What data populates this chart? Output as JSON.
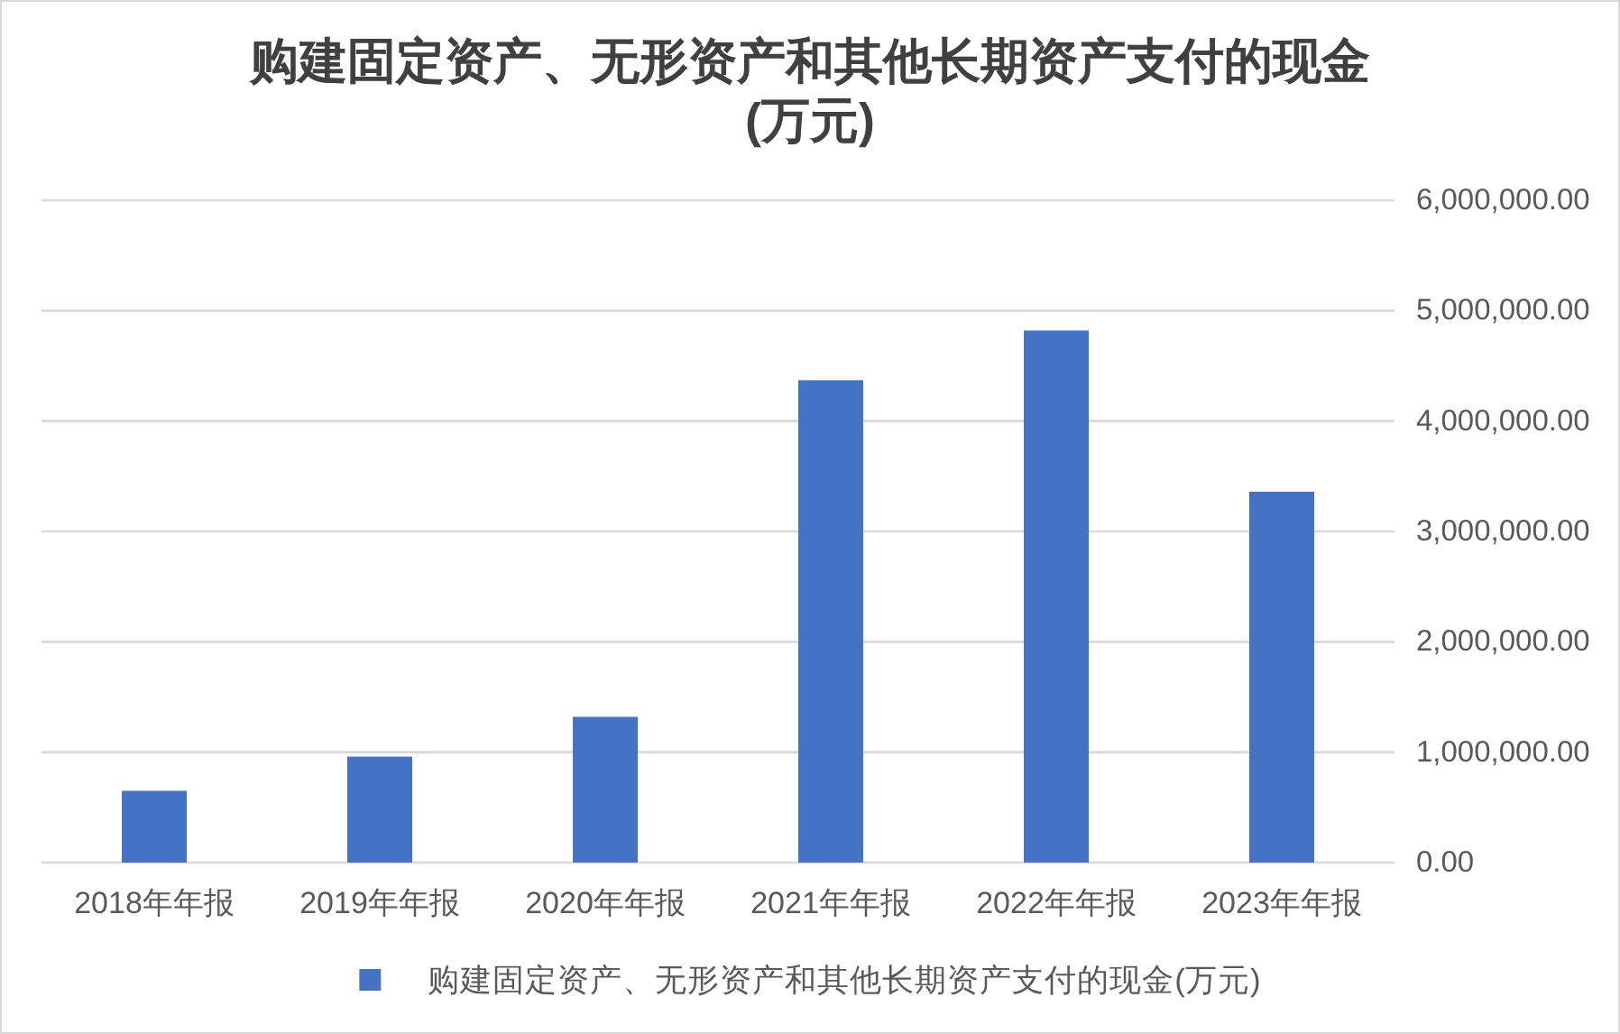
{
  "chart_data": {
    "type": "bar",
    "title": "购建固定资产、无形资产和其他长期资产支付的现金(万元)",
    "categories": [
      "2018年年报",
      "2019年年报",
      "2020年年报",
      "2021年年报",
      "2022年年报",
      "2023年年报"
    ],
    "series": [
      {
        "name": "购建固定资产、无形资产和其他长期资产支付的现金(万元)",
        "color": "#4472c4",
        "values": [
          650000,
          960000,
          1320000,
          4370000,
          4820000,
          3360000
        ]
      }
    ],
    "ylim": [
      0,
      6000000
    ],
    "yticks": [
      {
        "value": 0,
        "label": "0.00"
      },
      {
        "value": 1000000,
        "label": "1,000,000.00"
      },
      {
        "value": 2000000,
        "label": "2,000,000.00"
      },
      {
        "value": 3000000,
        "label": "3,000,000.00"
      },
      {
        "value": 4000000,
        "label": "4,000,000.00"
      },
      {
        "value": 5000000,
        "label": "5,000,000.00"
      },
      {
        "value": 6000000,
        "label": "6,000,000.00"
      }
    ],
    "grid": "y",
    "legend": "bottom"
  }
}
